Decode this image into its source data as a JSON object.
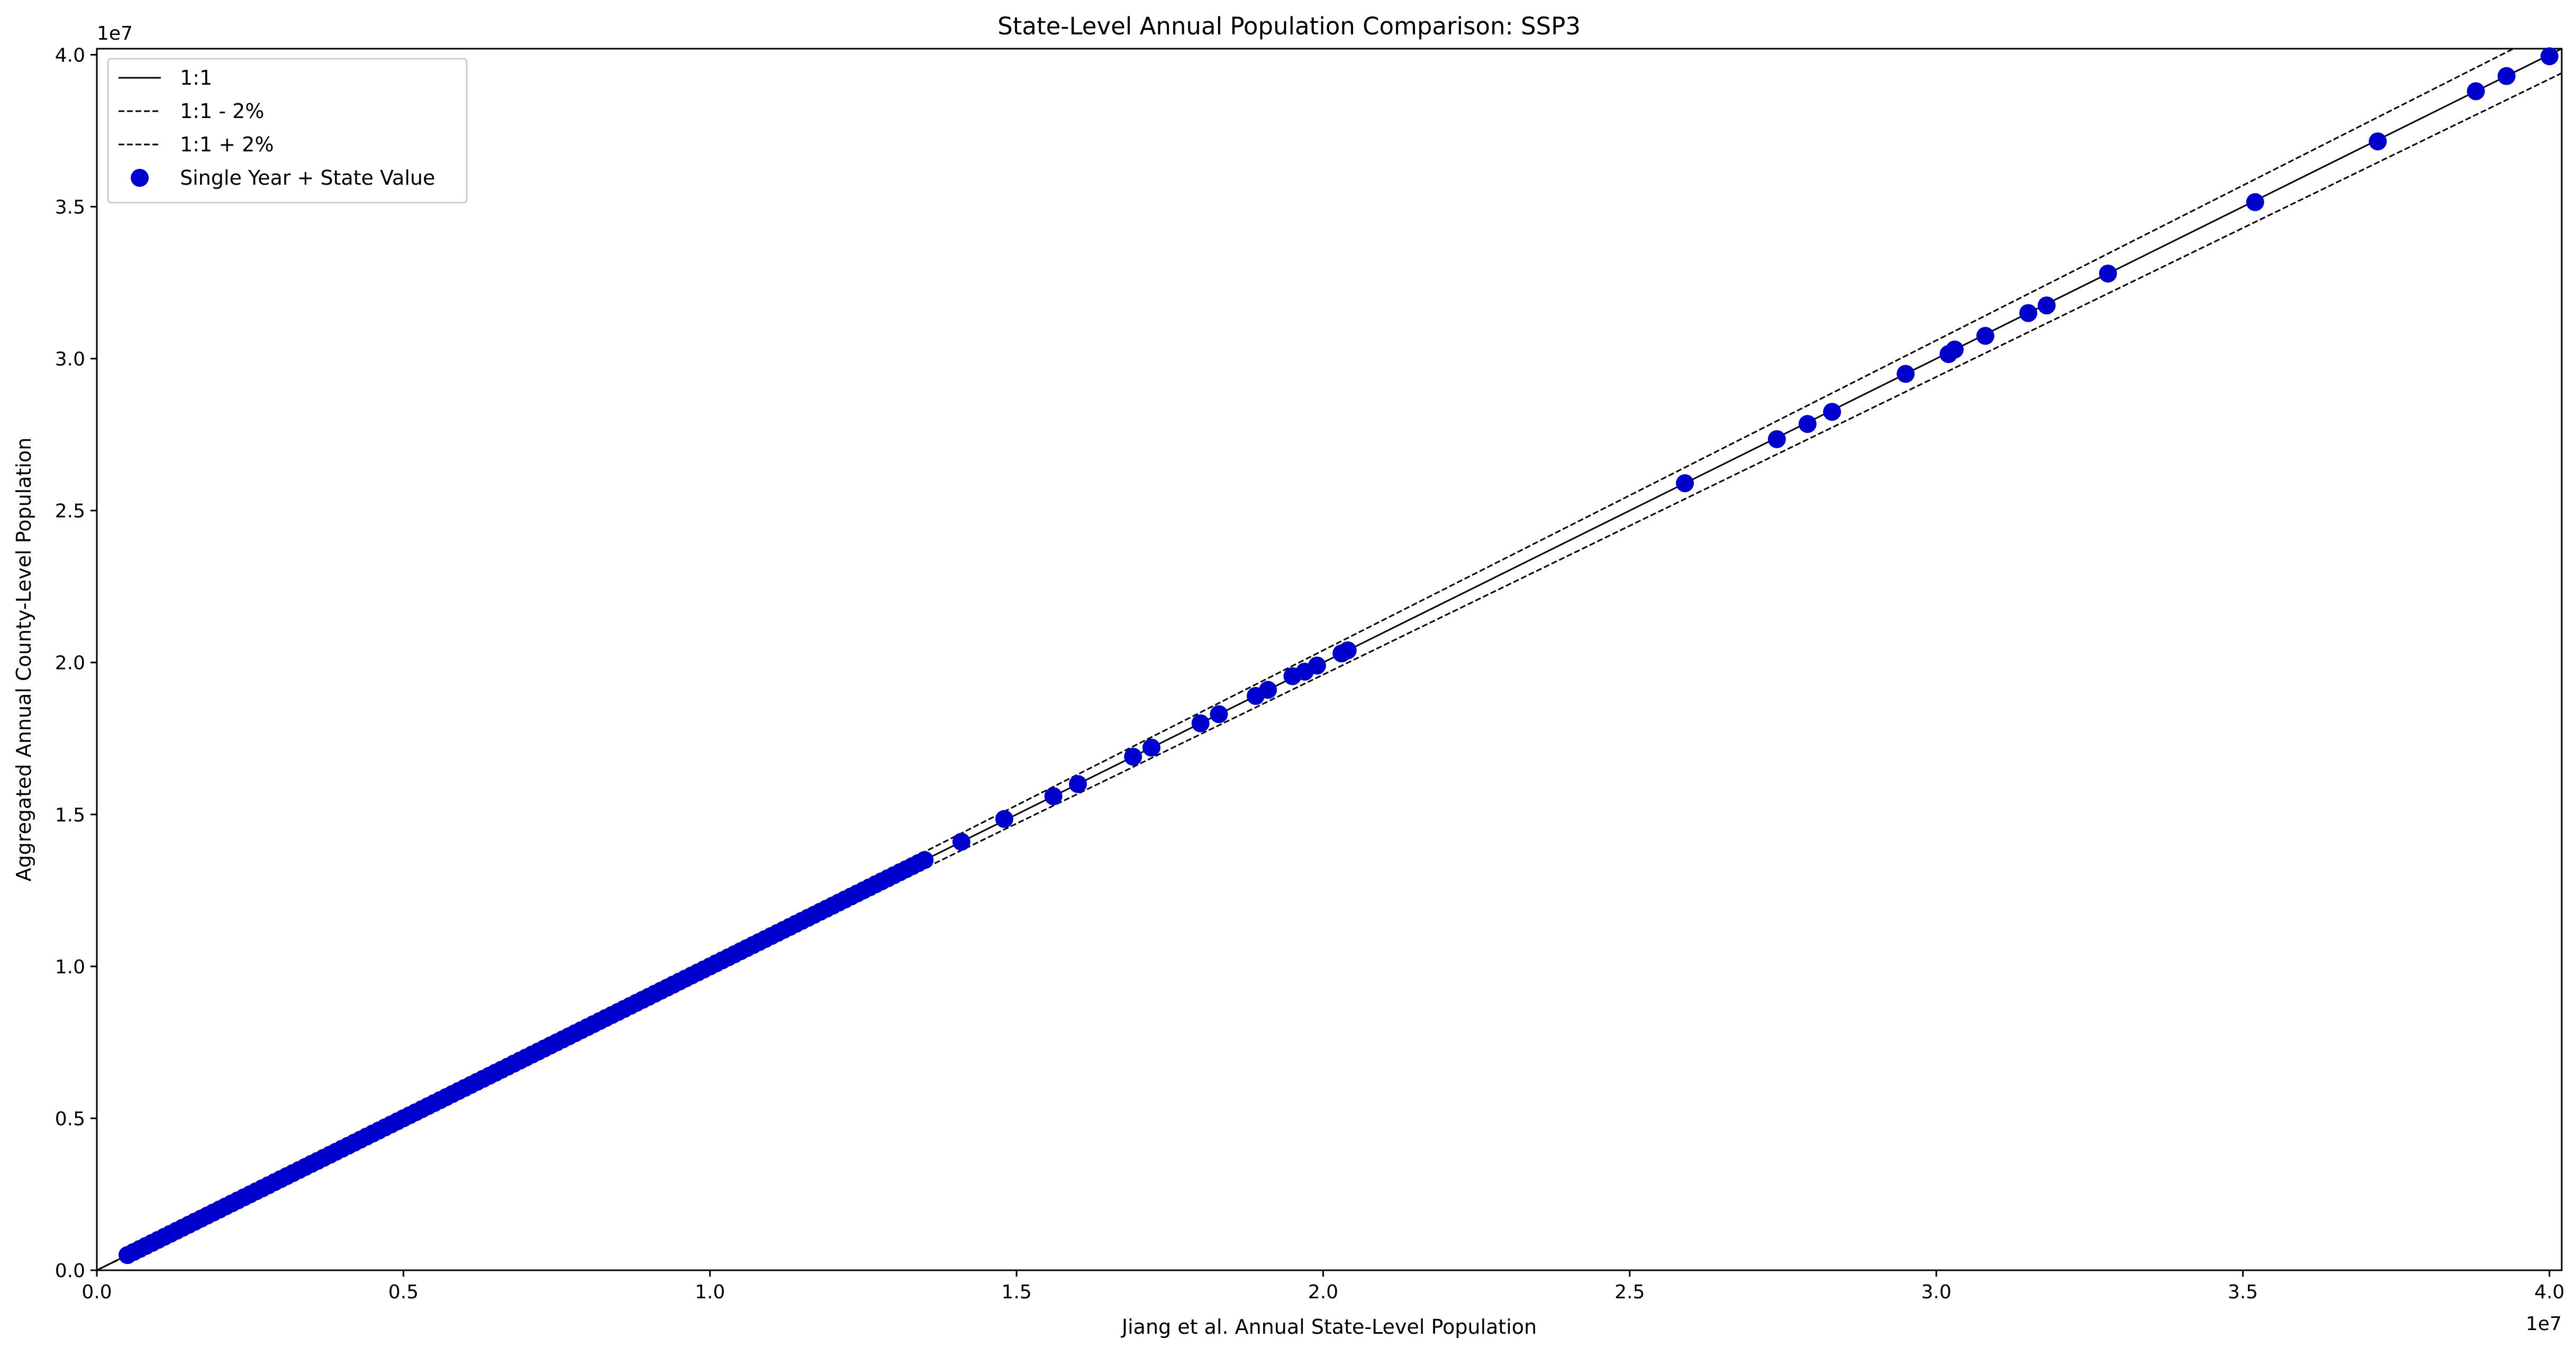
{
  "chart_data": {
    "type": "scatter",
    "title": "State-Level Annual Population Comparison: SSP3",
    "xlabel": "Jiang et al. Annual State-Level Population",
    "ylabel": "Aggregated Annual County-Level Population",
    "x_offset_label": "1e7",
    "y_offset_label": "1e7",
    "xlim": [
      0,
      40200000
    ],
    "ylim": [
      0,
      40200000
    ],
    "x_ticks": [
      0,
      5000000,
      10000000,
      15000000,
      20000000,
      25000000,
      30000000,
      35000000,
      40000000
    ],
    "x_tick_labels": [
      "0.0",
      "0.5",
      "1.0",
      "1.5",
      "2.0",
      "2.5",
      "3.0",
      "3.5",
      "4.0"
    ],
    "y_ticks": [
      0,
      5000000,
      10000000,
      15000000,
      20000000,
      25000000,
      30000000,
      35000000,
      40000000
    ],
    "y_tick_labels": [
      "0.0",
      "0.5",
      "1.0",
      "1.5",
      "2.0",
      "2.5",
      "3.0",
      "3.5",
      "4.0"
    ],
    "grid": false,
    "legend_position": "upper-left",
    "colors": {
      "points": "#0000cc",
      "lines": "#000000"
    },
    "reference_lines": [
      {
        "name": "1:1",
        "factor": 1.0,
        "style": "solid"
      },
      {
        "name": "1:1 - 2%",
        "factor": 0.98,
        "style": "dashed"
      },
      {
        "name": "1:1 + 2%",
        "factor": 1.02,
        "style": "dashed"
      }
    ],
    "series": [
      {
        "name": "Single Year + State Value",
        "sparse_points": [
          [
            14100000,
            14100000
          ],
          [
            14800000,
            14850000
          ],
          [
            15600000,
            15600000
          ],
          [
            16000000,
            16000000
          ],
          [
            16900000,
            16900000
          ],
          [
            17200000,
            17200000
          ],
          [
            18000000,
            18000000
          ],
          [
            18300000,
            18300000
          ],
          [
            18900000,
            18900000
          ],
          [
            19100000,
            19100000
          ],
          [
            19500000,
            19550000
          ],
          [
            19700000,
            19700000
          ],
          [
            19900000,
            19900000
          ],
          [
            20300000,
            20300000
          ],
          [
            20400000,
            20400000
          ],
          [
            25900000,
            25900000
          ],
          [
            27400000,
            27350000
          ],
          [
            27900000,
            27850000
          ],
          [
            28300000,
            28250000
          ],
          [
            29500000,
            29500000
          ],
          [
            30200000,
            30150000
          ],
          [
            30300000,
            30300000
          ],
          [
            30800000,
            30750000
          ],
          [
            31500000,
            31500000
          ],
          [
            31800000,
            31750000
          ],
          [
            32800000,
            32800000
          ],
          [
            35200000,
            35150000
          ],
          [
            37200000,
            37150000
          ],
          [
            38800000,
            38800000
          ],
          [
            39300000,
            39300000
          ],
          [
            40000000,
            39950000
          ]
        ],
        "dense_range": [
          500000,
          13500000
        ],
        "dense_step": 100000
      }
    ]
  }
}
